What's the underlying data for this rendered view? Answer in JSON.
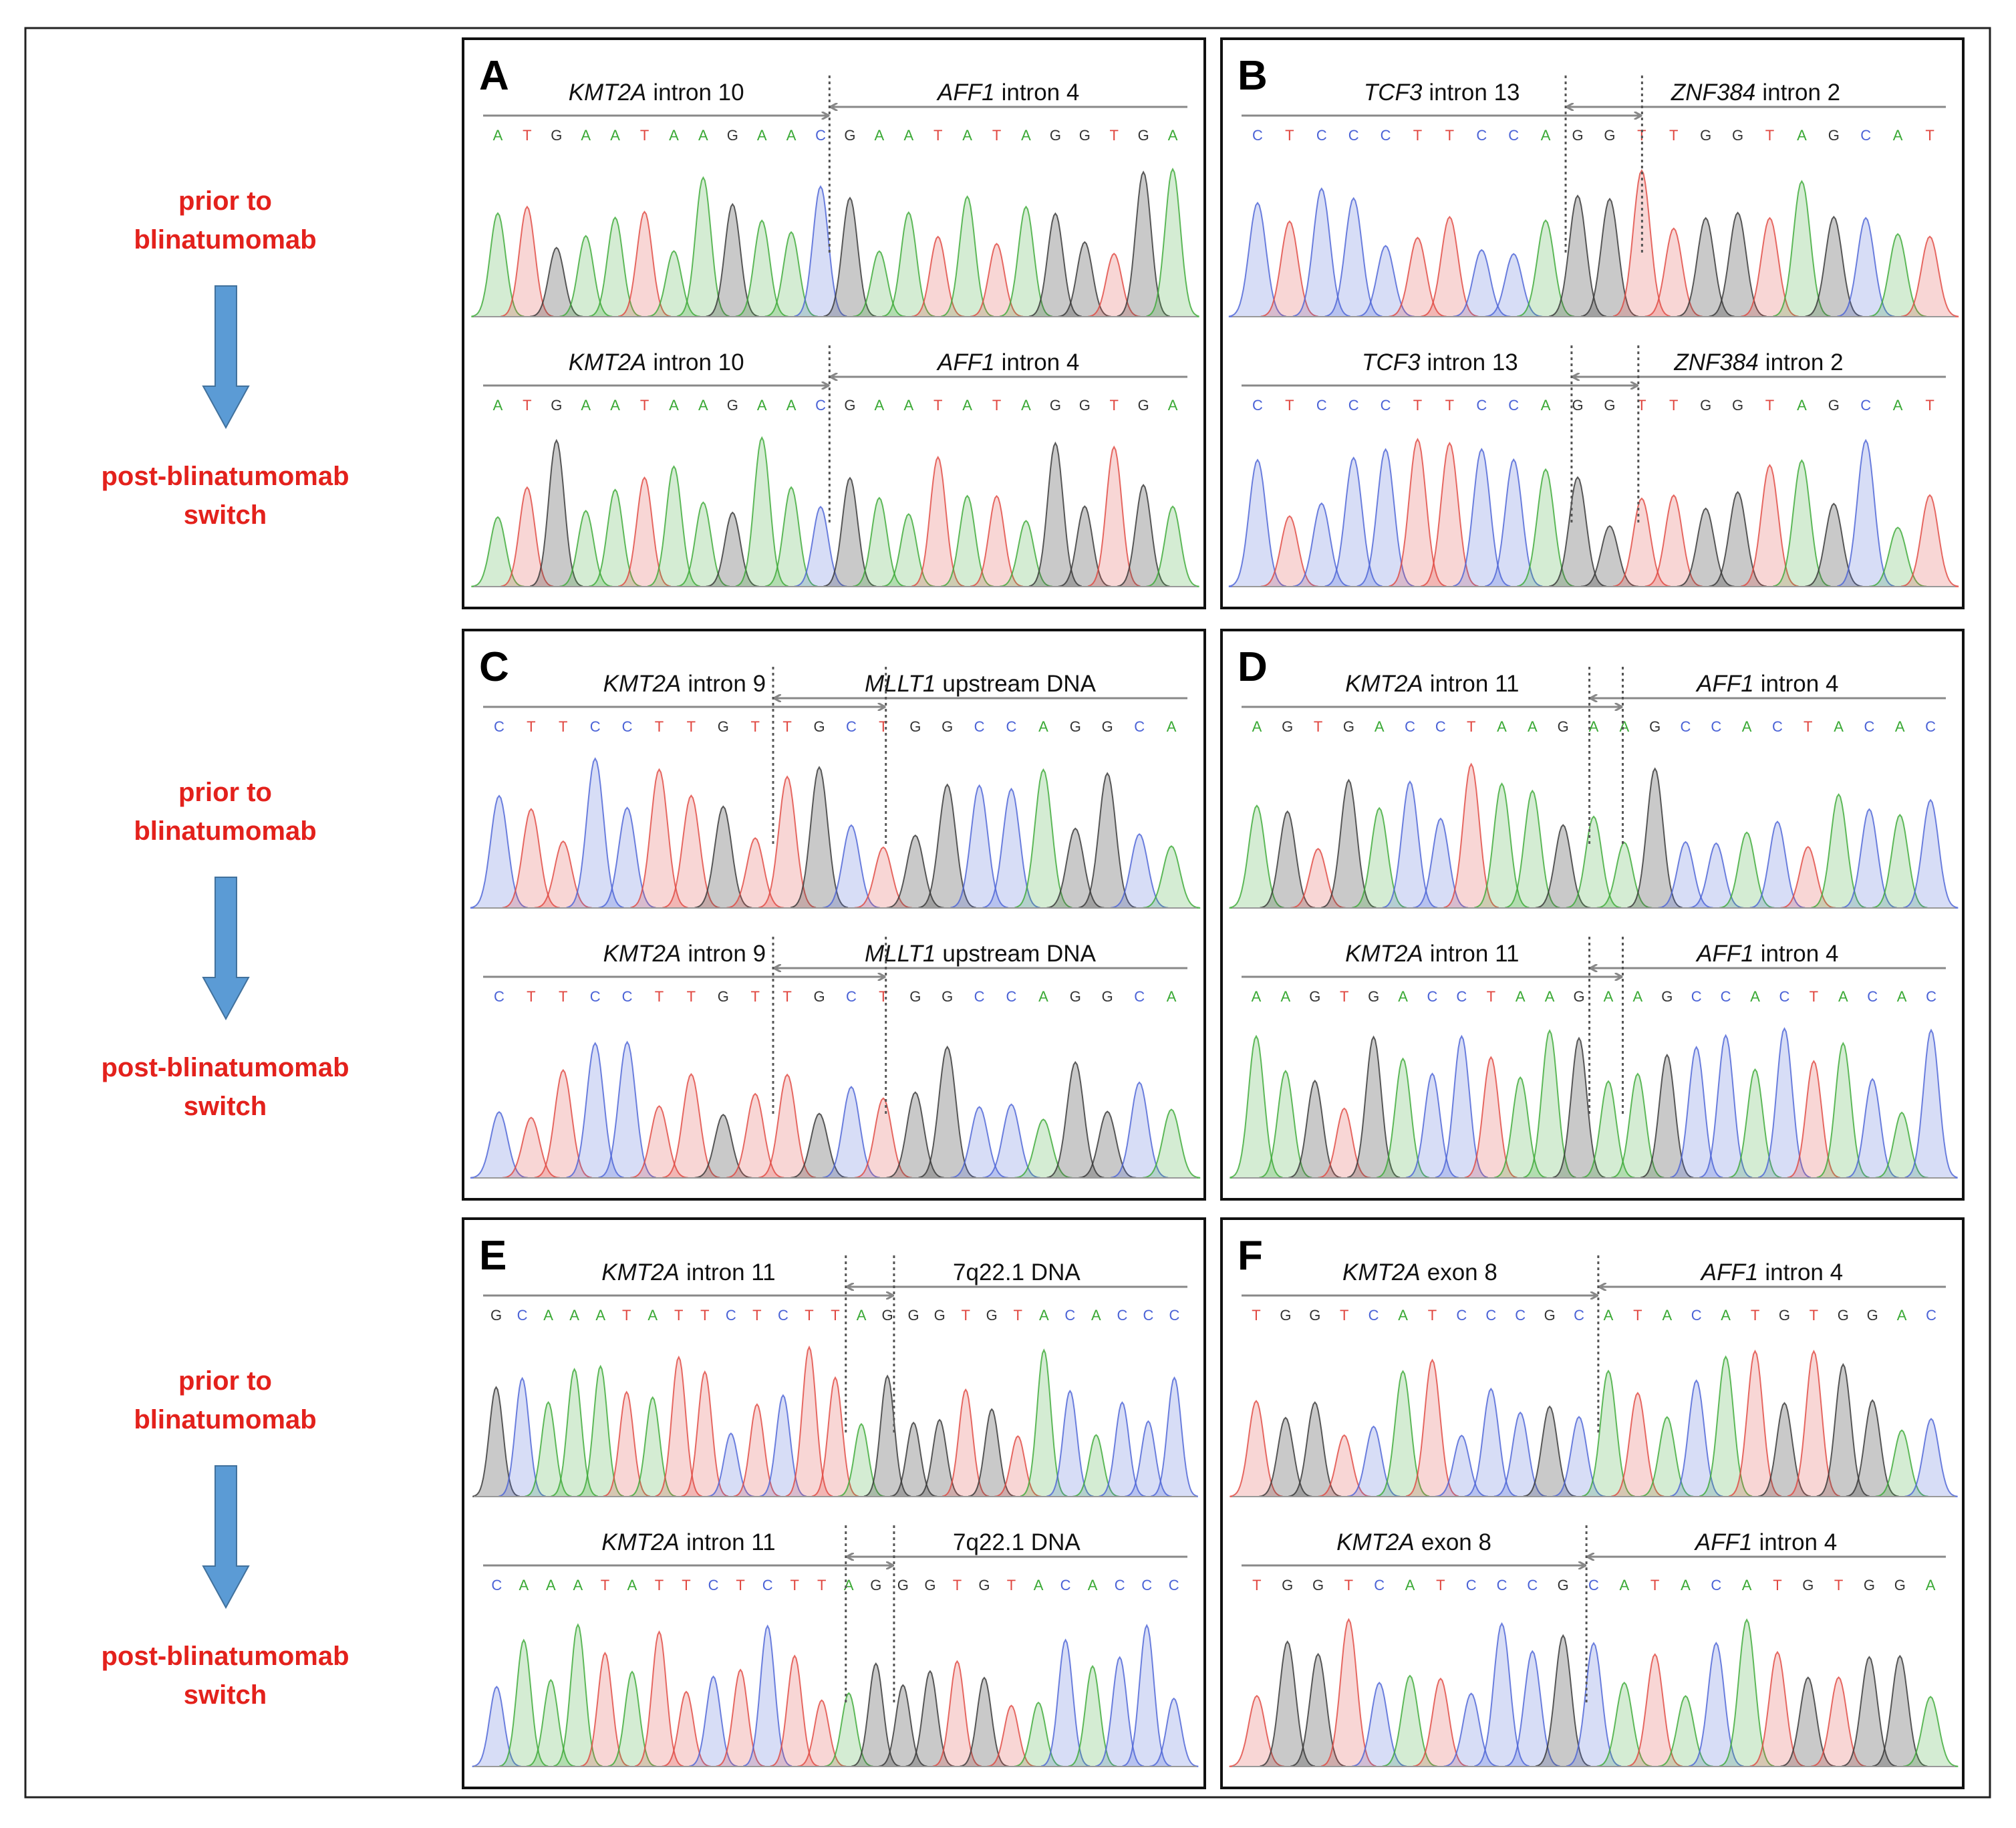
{
  "side_labels": [
    {
      "before": [
        "prior to",
        "blinatumomab"
      ],
      "after": [
        "post-blinatumomab",
        "switch"
      ]
    },
    {
      "before": [
        "prior to",
        "blinatumomab"
      ],
      "after": [
        "post-blinatumomab",
        "switch"
      ]
    },
    {
      "before": [
        "prior to",
        "blinatumomab"
      ],
      "after": [
        "post-blinatumomab",
        "switch"
      ]
    }
  ],
  "panels": [
    {
      "label": "A",
      "traces": [
        {
          "left": {
            "gene": "KMT2A",
            "text": "intron 10"
          },
          "right": {
            "gene": "AFF1",
            "text": "intron 4"
          },
          "sequence": "ATGAATAAGAACGAATATAGGTGA"
        },
        {
          "left": {
            "gene": "KMT2A",
            "text": "intron 10"
          },
          "right": {
            "gene": "AFF1",
            "text": "intron 4"
          },
          "sequence": "ATGAATAAGAACGAATATAGGTGA"
        }
      ]
    },
    {
      "label": "B",
      "traces": [
        {
          "left": {
            "gene": "TCF3",
            "text": "intron 13"
          },
          "right": {
            "gene": "ZNF384",
            "text": "intron 2"
          },
          "sequence": "CTCCCTTCCAGGTTGGTAGCAT"
        },
        {
          "left": {
            "gene": "TCF3",
            "text": "intron 13"
          },
          "right": {
            "gene": "ZNF384",
            "text": "intron 2"
          },
          "sequence": "CTCCCTTCCAGGTTGGTAGCAT"
        }
      ]
    },
    {
      "label": "C",
      "traces": [
        {
          "left": {
            "gene": "KMT2A",
            "text": "intron 9"
          },
          "right": {
            "gene": "MLLT1",
            "text": "upstream DNA"
          },
          "sequence": "CTTCCTTGTTGCTGGCCAGGCA"
        },
        {
          "left": {
            "gene": "KMT2A",
            "text": "intron 9"
          },
          "right": {
            "gene": "MLLT1",
            "text": "upstream DNA"
          },
          "sequence": "CTTCCTTGTTGCTGGCCAGGCA"
        }
      ]
    },
    {
      "label": "D",
      "traces": [
        {
          "left": {
            "gene": "KMT2A",
            "text": "intron 11"
          },
          "right": {
            "gene": "AFF1",
            "text": "intron 4"
          },
          "sequence": "AGTGACCTAAGAAGCCACTACAC"
        },
        {
          "left": {
            "gene": "KMT2A",
            "text": "intron 11"
          },
          "right": {
            "gene": "AFF1",
            "text": "intron 4"
          },
          "sequence": "AAGTGACCTAAGAAGCCACTACAC"
        }
      ]
    },
    {
      "label": "E",
      "traces": [
        {
          "left": {
            "gene": "KMT2A",
            "text": "intron 11"
          },
          "right": {
            "text": "7q22.1 DNA"
          },
          "sequence": "GCAAATATTCTCTTAGGGTGTACACCC"
        },
        {
          "left": {
            "gene": "KMT2A",
            "text": "intron 11"
          },
          "right": {
            "text": "7q22.1 DNA"
          },
          "sequence": "CAAATATTCTCTTAGGGTGTACACCC"
        }
      ]
    },
    {
      "label": "F",
      "traces": [
        {
          "left": {
            "gene": "KMT2A",
            "text": "exon 8"
          },
          "right": {
            "gene": "AFF1",
            "text": "intron 4"
          },
          "sequence": "TGGTCATCCCGCATACATGTGGAC"
        },
        {
          "left": {
            "gene": "KMT2A",
            "text": "exon 8"
          },
          "right": {
            "gene": "AFF1",
            "text": "intron 4"
          },
          "sequence": "TGGTCATCCCGCATACATGTGGA"
        }
      ]
    }
  ]
}
